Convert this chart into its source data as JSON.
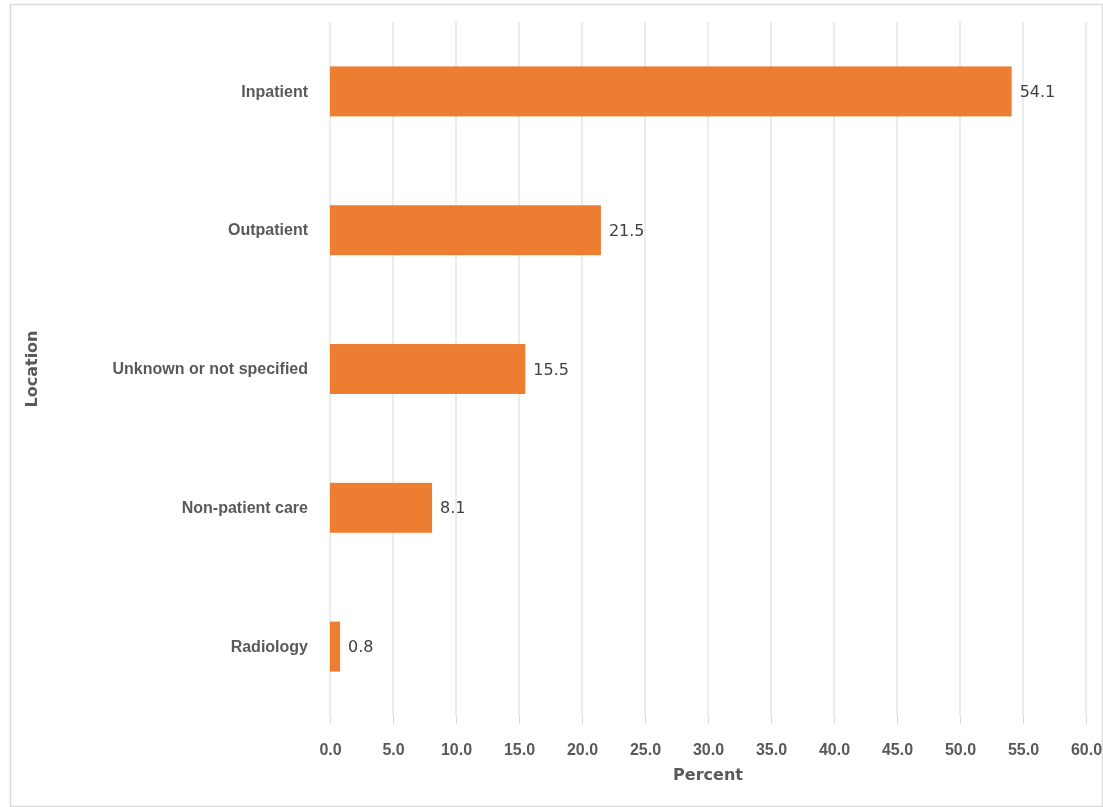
{
  "chart_data": {
    "type": "bar",
    "orientation": "horizontal",
    "categories": [
      "Inpatient",
      "Outpatient",
      "Unknown or not specified",
      "Non-patient care",
      "Radiology"
    ],
    "values": [
      54.1,
      21.5,
      15.5,
      8.1,
      0.8
    ],
    "color": "#ed7d31",
    "xlim": [
      0,
      60
    ],
    "xticks": [
      {
        "value": 0,
        "label": "0.0"
      },
      {
        "value": 5,
        "label": "5.0"
      },
      {
        "value": 10,
        "label": "10.0"
      },
      {
        "value": 15,
        "label": "15.0"
      },
      {
        "value": 20,
        "label": "20.0"
      },
      {
        "value": 25,
        "label": "25.0"
      },
      {
        "value": 30,
        "label": "30.0"
      },
      {
        "value": 35,
        "label": "35.0"
      },
      {
        "value": 40,
        "label": "40.0"
      },
      {
        "value": 45,
        "label": "45.0"
      },
      {
        "value": 50,
        "label": "50.0"
      },
      {
        "value": 55,
        "label": "55.0"
      },
      {
        "value": 60,
        "label": "60.0"
      }
    ],
    "xlabel": "Percent",
    "ylabel": "Location",
    "grid": "x",
    "data_labels": true
  }
}
